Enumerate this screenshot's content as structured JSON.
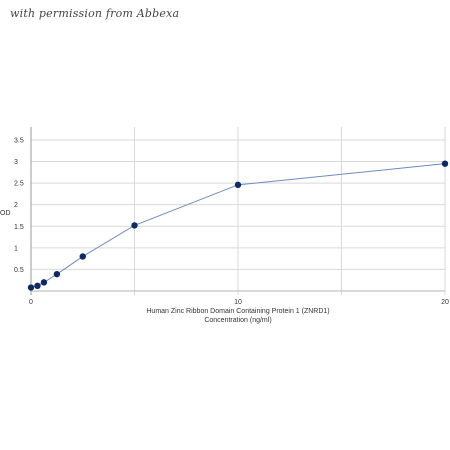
{
  "watermark": "with permission from Abbexa",
  "chart_data": {
    "type": "line",
    "title": "",
    "xlabel_line1": "Human Zinc Ribbon Domain Containing Protein 1 (ZNRD1)",
    "xlabel_line2": "Concentration (ng/ml)",
    "ylabel": "OD",
    "xlim": [
      0,
      20
    ],
    "ylim": [
      0,
      3.8
    ],
    "x_ticks": [
      0,
      10,
      20
    ],
    "x_gridlines": [
      0,
      5,
      10,
      15,
      20
    ],
    "y_ticks": [
      "0.5",
      "1",
      "1.5",
      "2",
      "2.5",
      "3",
      "3.5"
    ],
    "y_tick_values": [
      0.5,
      1,
      1.5,
      2,
      2.5,
      3,
      3.5
    ],
    "grid": true,
    "line_color": "#6b8cc0",
    "marker_color": "#0d2a66",
    "grid_color": "#d9d9d9",
    "series": [
      {
        "x": [
          0,
          0.3125,
          0.625,
          1.25,
          2.5,
          5,
          10,
          20
        ],
        "y": [
          0.08,
          0.12,
          0.2,
          0.39,
          0.8,
          1.52,
          2.46,
          2.95
        ]
      }
    ]
  }
}
